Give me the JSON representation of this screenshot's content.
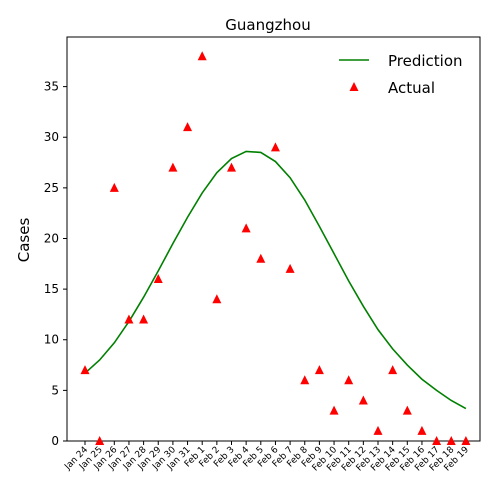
{
  "chart_data": {
    "type": "line",
    "title": "Guangzhou",
    "xlabel": "",
    "ylabel": "Cases",
    "categories": [
      "Jan 24",
      "Jan 25",
      "Jan 26",
      "Jan 27",
      "Jan 28",
      "Jan 29",
      "Jan 30",
      "Jan 31",
      "Feb 1",
      "Feb 2",
      "Feb 3",
      "Feb 4",
      "Feb 5",
      "Feb 6",
      "Feb 7",
      "Feb 8",
      "Feb 9",
      "Feb 10",
      "Feb 11",
      "Feb 12",
      "Feb 13",
      "Feb 14",
      "Feb 15",
      "Feb 16",
      "Feb 17",
      "Feb 18",
      "Feb 19"
    ],
    "ylim": [
      0,
      39.9
    ],
    "yticks": [
      0,
      5,
      10,
      15,
      20,
      25,
      30,
      35
    ],
    "grid": false,
    "legend_position": "top-right",
    "series": [
      {
        "name": "Prediction",
        "kind": "line",
        "color": "#008000",
        "values": [
          6.7,
          8.0,
          9.7,
          11.8,
          14.2,
          16.8,
          19.5,
          22.1,
          24.5,
          26.5,
          27.9,
          28.6,
          28.5,
          27.6,
          26.0,
          23.8,
          21.2,
          18.5,
          15.8,
          13.3,
          11.0,
          9.1,
          7.5,
          6.1,
          5.0,
          4.0,
          3.2
        ]
      },
      {
        "name": "Actual",
        "kind": "marker",
        "marker": "triangle-up",
        "color": "#ff0000",
        "values": [
          7,
          0,
          25,
          12,
          12,
          16,
          27,
          31,
          38,
          14,
          27,
          21,
          18,
          29,
          17,
          6,
          7,
          3,
          6,
          4,
          1,
          7,
          3,
          1,
          0,
          0,
          0
        ]
      }
    ]
  }
}
